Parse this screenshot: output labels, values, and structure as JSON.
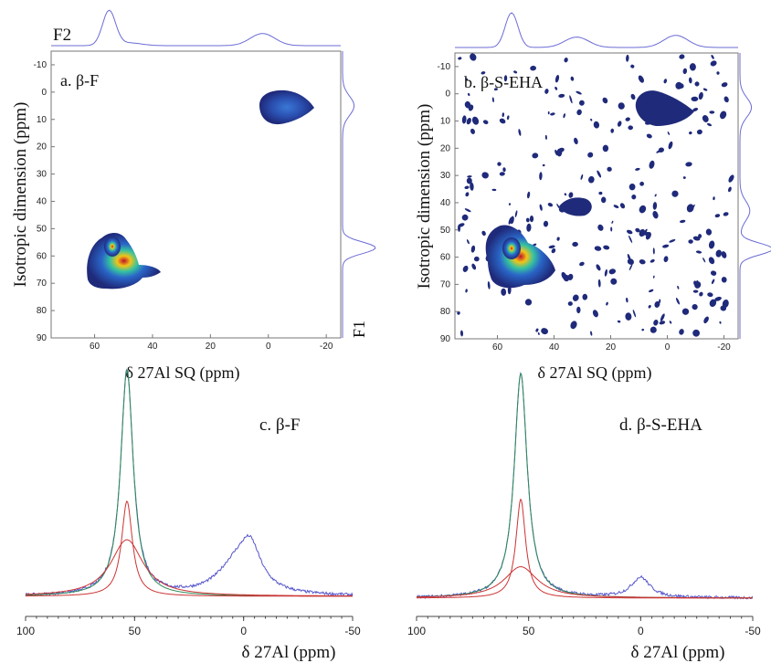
{
  "colors": {
    "projection": "#6b6bd6",
    "blob_dark": "#1f2a7a",
    "fit_total": "#2e8b57",
    "fit_component": "#cc3333",
    "spectrum": "#5555cc"
  },
  "chart_data": [
    {
      "type": "heatmap",
      "panel": "a",
      "label": "a. β-F",
      "xlabel": "δ 27Al SQ (ppm)",
      "ylabel": "Isotropic dimension (ppm)",
      "f2_label": "F2",
      "f1_label": "F1",
      "xlim": [
        75,
        -25
      ],
      "ylim": [
        -15,
        90
      ],
      "x_ticks": [
        60,
        40,
        20,
        0,
        -20
      ],
      "y_ticks": [
        -10,
        0,
        10,
        20,
        30,
        40,
        50,
        60,
        70,
        80,
        90
      ],
      "peaks": [
        {
          "x": 55,
          "y": 57,
          "intensity": 1.0
        },
        {
          "x": 2,
          "y": 5,
          "intensity": 0.35
        }
      ]
    },
    {
      "type": "heatmap",
      "panel": "b",
      "label": "b. β-S-EHA",
      "xlabel": "δ 27Al SQ (ppm)",
      "ylabel": "Isotropic dimension (ppm)",
      "xlim": [
        75,
        -25
      ],
      "ylim": [
        -15,
        90
      ],
      "x_ticks": [
        60,
        40,
        20,
        0,
        -20
      ],
      "y_ticks": [
        -10,
        0,
        10,
        20,
        30,
        40,
        50,
        60,
        70,
        80,
        90
      ],
      "peaks": [
        {
          "x": 55,
          "y": 57,
          "intensity": 1.0
        },
        {
          "x": 32,
          "y": 43,
          "intensity": 0.3
        },
        {
          "x": -3,
          "y": 5,
          "intensity": 0.35
        }
      ]
    },
    {
      "type": "line",
      "panel": "c",
      "label": "c. β-F",
      "xlabel": "δ 27Al (ppm)",
      "xlim": [
        100,
        -50
      ],
      "x_ticks": [
        100,
        50,
        0,
        -50
      ],
      "series": [
        {
          "role": "experimental",
          "peaks": [
            [
              53.5,
              1.0,
              3.5
            ],
            [
              -3,
              0.18,
              6
            ],
            [
              4,
              0.12,
              10
            ]
          ]
        },
        {
          "role": "total_fit",
          "peaks": [
            [
              53.5,
              1.0,
              3.5
            ]
          ]
        },
        {
          "role": "component",
          "peaks": [
            [
              53.5,
              0.42,
              3
            ]
          ]
        },
        {
          "role": "component",
          "peaks": [
            [
              53.5,
              0.25,
              9
            ]
          ]
        }
      ]
    },
    {
      "type": "line",
      "panel": "d",
      "label": "d. β-S-EHA",
      "xlabel": "δ 27Al (ppm)",
      "xlim": [
        100,
        -50
      ],
      "x_ticks": [
        100,
        50,
        0,
        -50
      ],
      "series": [
        {
          "role": "experimental",
          "peaks": [
            [
              53.5,
              1.0,
              3.5
            ],
            [
              0,
              0.09,
              5
            ]
          ]
        },
        {
          "role": "total_fit",
          "peaks": [
            [
              53.5,
              1.0,
              3.5
            ]
          ]
        },
        {
          "role": "component",
          "peaks": [
            [
              53.5,
              0.44,
              2.6
            ]
          ]
        },
        {
          "role": "component",
          "peaks": [
            [
              53.5,
              0.14,
              9
            ]
          ]
        }
      ]
    }
  ]
}
